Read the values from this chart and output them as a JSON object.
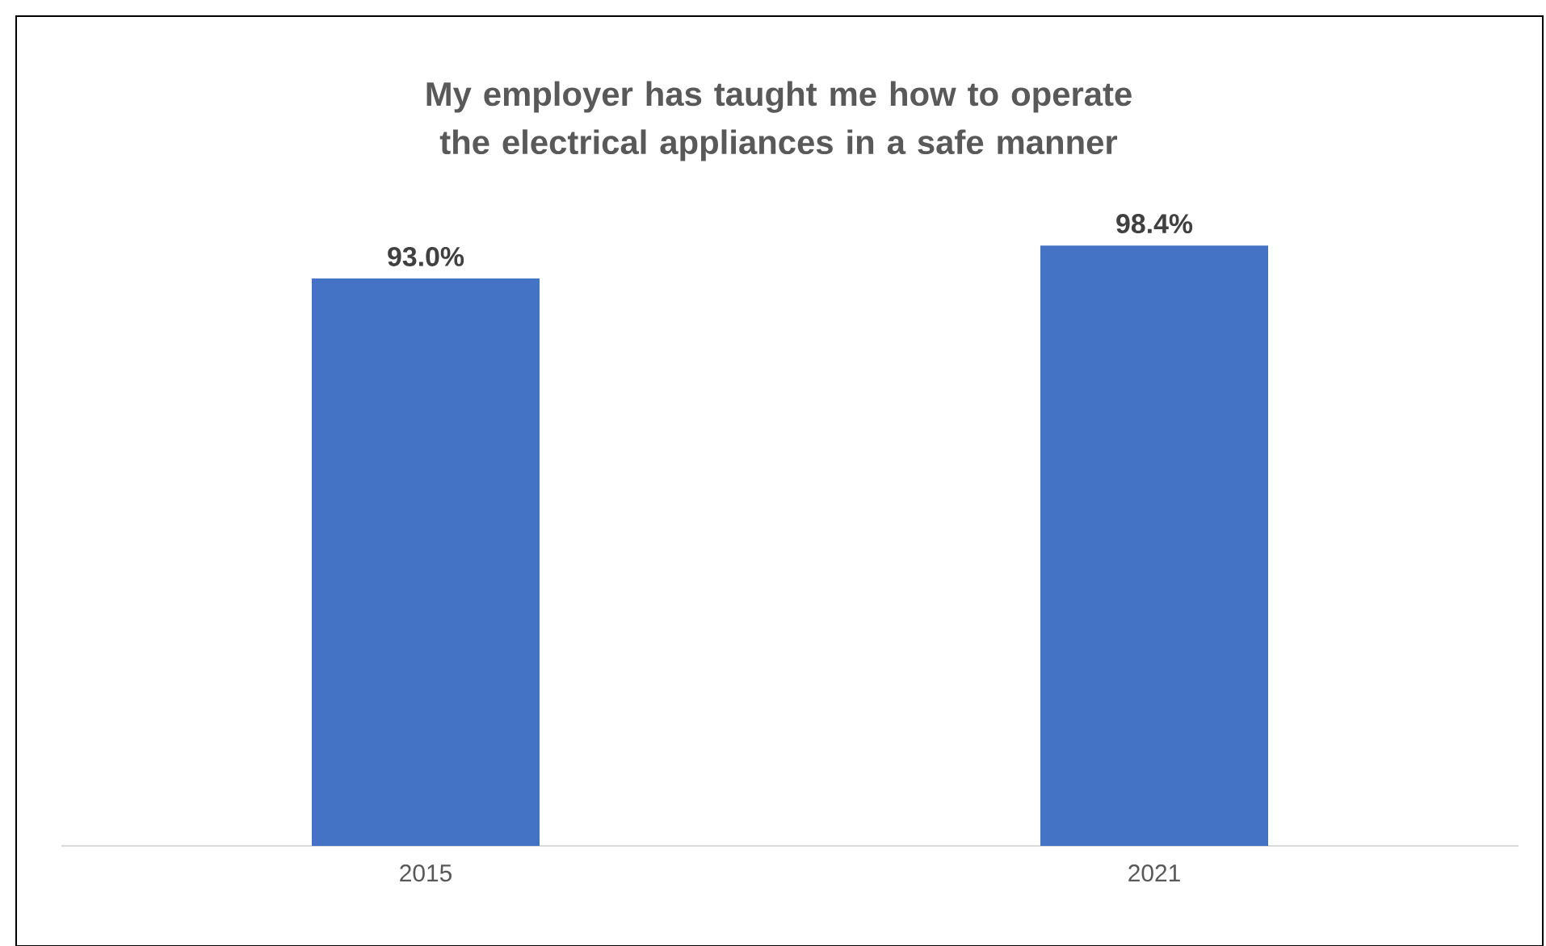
{
  "chart_data": {
    "type": "bar",
    "title": "My employer has taught me how to operate the electrical appliances in a safe manner",
    "categories": [
      "2015",
      "2021"
    ],
    "values": [
      93.0,
      98.4
    ],
    "value_labels": [
      "93.0%",
      "98.4%"
    ],
    "color": "#4472c4"
  }
}
